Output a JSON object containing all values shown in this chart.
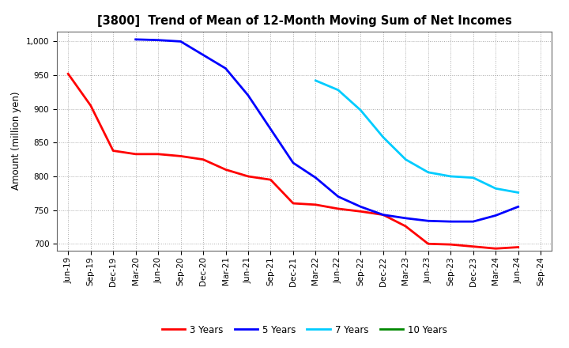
{
  "title": "[3800]  Trend of Mean of 12-Month Moving Sum of Net Incomes",
  "ylabel": "Amount (million yen)",
  "background_color": "#ffffff",
  "grid_color": "#aaaaaa",
  "ylim": [
    690,
    1015
  ],
  "yticks": [
    700,
    750,
    800,
    850,
    900,
    950,
    1000
  ],
  "series": {
    "3 Years": {
      "color": "#ff0000",
      "x": [
        "Jun-19",
        "Sep-19",
        "Dec-19",
        "Mar-20",
        "Jun-20",
        "Sep-20",
        "Dec-20",
        "Mar-21",
        "Jun-21",
        "Sep-21",
        "Dec-21",
        "Mar-22",
        "Jun-22",
        "Sep-22",
        "Dec-22",
        "Mar-23",
        "Jun-23",
        "Sep-23",
        "Dec-23",
        "Mar-24",
        "Jun-24"
      ],
      "y": [
        952,
        905,
        838,
        833,
        833,
        830,
        825,
        810,
        800,
        795,
        760,
        758,
        752,
        748,
        743,
        726,
        700,
        699,
        696,
        693,
        695
      ]
    },
    "5 Years": {
      "color": "#0000ff",
      "x": [
        "Mar-20",
        "Jun-20",
        "Sep-20",
        "Dec-20",
        "Mar-21",
        "Jun-21",
        "Sep-21",
        "Dec-21",
        "Mar-22",
        "Jun-22",
        "Sep-22",
        "Dec-22",
        "Mar-23",
        "Jun-23",
        "Sep-23",
        "Dec-23",
        "Mar-24",
        "Jun-24"
      ],
      "y": [
        1003,
        1002,
        1000,
        980,
        960,
        920,
        870,
        820,
        798,
        770,
        755,
        743,
        738,
        734,
        733,
        733,
        742,
        755
      ]
    },
    "7 Years": {
      "color": "#00ccff",
      "x": [
        "Mar-22",
        "Jun-22",
        "Sep-22",
        "Dec-22",
        "Mar-23",
        "Jun-23",
        "Sep-23",
        "Dec-23",
        "Mar-24",
        "Jun-24"
      ],
      "y": [
        942,
        928,
        898,
        858,
        825,
        806,
        800,
        798,
        782,
        776
      ]
    },
    "10 Years": {
      "color": "#008800",
      "x": [],
      "y": []
    }
  },
  "legend_labels": [
    "3 Years",
    "5 Years",
    "7 Years",
    "10 Years"
  ],
  "xtick_labels": [
    "Jun-19",
    "Sep-19",
    "Dec-19",
    "Mar-20",
    "Jun-20",
    "Sep-20",
    "Dec-20",
    "Mar-21",
    "Jun-21",
    "Sep-21",
    "Dec-21",
    "Mar-22",
    "Jun-22",
    "Sep-22",
    "Dec-22",
    "Mar-23",
    "Jun-23",
    "Sep-23",
    "Dec-23",
    "Mar-24",
    "Jun-24",
    "Sep-24"
  ],
  "title_fontsize": 10.5,
  "ylabel_fontsize": 8.5,
  "tick_fontsize": 7.5,
  "legend_fontsize": 8.5,
  "line_width": 2.0
}
